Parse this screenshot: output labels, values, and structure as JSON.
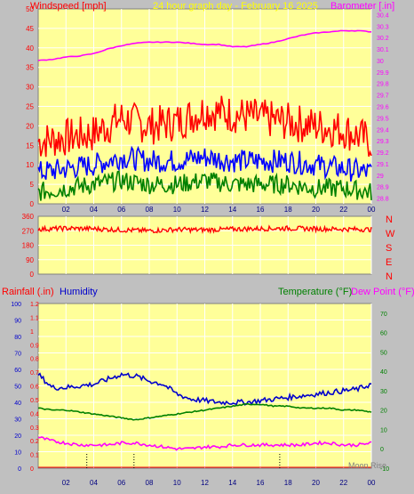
{
  "header": {
    "left_label": "Windspeed [mph]",
    "center_label": "24 hour graph day - February 16 2025",
    "right_label": "Barometer [.in]"
  },
  "dir_letters": [
    "N",
    "W",
    "S",
    "E",
    "N"
  ],
  "bottom_header": {
    "rain_label": "Rainfall (.in)",
    "humidity_label": "Humidity",
    "temp_label": "Temperature (°F)",
    "dew_label": "Dew Point (°F)"
  },
  "moon_label": "Moon Rise",
  "colors": {
    "plot_bg": "#ffff99",
    "frame": "#c0c0c0",
    "gust": "#ff0000",
    "wind_avg": "#0000ff",
    "wind_low": "#008000",
    "barometer": "#ff00ff",
    "direction": "#ff0000",
    "humidity": "#0000cc",
    "temperature": "#008000",
    "dewpoint": "#ff00ff",
    "rain": "#ff0000"
  },
  "chart_data": [
    {
      "type": "line",
      "title": "24 hour graph day - February 16 2025",
      "xlabel": "",
      "x_ticks": [
        "02",
        "04",
        "06",
        "08",
        "10",
        "12",
        "14",
        "16",
        "18",
        "20",
        "22",
        "00"
      ],
      "y_left_label": "Windspeed [mph]",
      "y_left_ticks": [
        0,
        5,
        10,
        15,
        20,
        25,
        30,
        35,
        40,
        45,
        50
      ],
      "ylim_left": [
        0,
        50
      ],
      "y_right_label": "Barometer [.in]",
      "y_right_ticks": [
        "28.8",
        "28.9",
        "29",
        "29.1",
        "29.2",
        "29.3",
        "29.4",
        "29.5",
        "29.6",
        "29.7",
        "29.8",
        "29.9",
        "30",
        "30.1",
        "30.2",
        "30.3",
        "30.4"
      ],
      "ylim_right": [
        28.75,
        30.45
      ],
      "grid": true,
      "series": [
        {
          "name": "Barometer",
          "axis": "right",
          "x": [
            0,
            1,
            2,
            3,
            4,
            5,
            6,
            7,
            8,
            9,
            10,
            11,
            12,
            13,
            14,
            15,
            16,
            17,
            18,
            19,
            20,
            21,
            22,
            23,
            24
          ],
          "values": [
            30.0,
            30.01,
            30.03,
            30.04,
            30.06,
            30.1,
            30.13,
            30.15,
            30.16,
            30.16,
            30.16,
            30.15,
            30.14,
            30.14,
            30.12,
            30.12,
            30.14,
            30.16,
            30.19,
            30.22,
            30.24,
            30.25,
            30.26,
            30.26,
            30.25
          ]
        },
        {
          "name": "Wind gust",
          "axis": "left",
          "x": [
            0,
            2,
            4,
            6,
            8,
            10,
            12,
            14,
            16,
            18,
            20,
            22,
            24
          ],
          "values": [
            16,
            17,
            18,
            22,
            20,
            21,
            24,
            23,
            22,
            21,
            20,
            19,
            16
          ]
        },
        {
          "name": "Wind speed",
          "axis": "left",
          "x": [
            0,
            2,
            4,
            6,
            8,
            10,
            12,
            14,
            16,
            18,
            20,
            22,
            24
          ],
          "values": [
            8,
            9,
            10,
            12,
            11,
            11,
            12,
            11,
            11,
            11,
            10,
            9,
            8
          ]
        },
        {
          "name": "Wind low",
          "axis": "left",
          "x": [
            0,
            2,
            4,
            6,
            8,
            10,
            12,
            14,
            16,
            18,
            20,
            22,
            24
          ],
          "values": [
            3,
            4,
            5,
            6,
            5,
            5,
            6,
            5,
            5,
            5,
            4,
            4,
            3
          ]
        }
      ]
    },
    {
      "type": "line",
      "x_ticks": [],
      "y_left_ticks": [
        0,
        90,
        180,
        270,
        360
      ],
      "ylim_left": [
        0,
        360
      ],
      "y_right_ticks": [
        "N",
        "W",
        "S",
        "E",
        "N"
      ],
      "grid": true,
      "series": [
        {
          "name": "Wind direction",
          "x": [
            0,
            2,
            4,
            6,
            8,
            10,
            12,
            14,
            16,
            18,
            20,
            22,
            24
          ],
          "values": [
            280,
            285,
            282,
            275,
            270,
            278,
            275,
            280,
            283,
            285,
            282,
            280,
            278
          ]
        }
      ]
    },
    {
      "type": "line",
      "x_ticks": [
        "02",
        "04",
        "06",
        "08",
        "10",
        "12",
        "14",
        "16",
        "18",
        "20",
        "22",
        "00"
      ],
      "y_left_ticks": [
        0,
        10,
        20,
        30,
        40,
        50,
        60,
        70,
        80,
        90,
        100
      ],
      "ylim_left": [
        0,
        100
      ],
      "y_rain_ticks": [
        "0",
        "0.1",
        "0.2",
        "0.3",
        "0.4",
        "0.5",
        "0.6",
        "0.7",
        "0.8",
        "0.9",
        "1",
        "1.1",
        "1.2"
      ],
      "ylim_rain": [
        0,
        1.2
      ],
      "y_right_ticks": [
        -10,
        0,
        10,
        20,
        30,
        40,
        50,
        60,
        70
      ],
      "ylim_right": [
        -10,
        75
      ],
      "grid": true,
      "series": [
        {
          "name": "Humidity",
          "axis": "left",
          "x": [
            0,
            1,
            2,
            3,
            4,
            5,
            6,
            7,
            8,
            9,
            10,
            11,
            12,
            13,
            14,
            15,
            16,
            17,
            18,
            19,
            20,
            21,
            22,
            23,
            24
          ],
          "values": [
            57,
            49,
            49,
            50,
            51,
            54,
            57,
            56,
            53,
            51,
            45,
            42,
            41,
            40,
            40,
            40,
            41,
            42,
            43,
            44,
            45,
            46,
            47,
            48,
            51
          ]
        },
        {
          "name": "Temperature",
          "axis": "right",
          "x": [
            0,
            1,
            2,
            3,
            4,
            5,
            6,
            7,
            8,
            9,
            10,
            11,
            12,
            13,
            14,
            15,
            16,
            17,
            18,
            19,
            20,
            21,
            22,
            23,
            24
          ],
          "values": [
            21,
            20,
            20,
            19,
            18,
            17,
            16,
            15,
            16,
            17,
            18,
            19,
            20,
            21,
            22,
            23,
            23,
            22,
            22,
            21,
            21,
            21,
            20,
            20,
            19
          ]
        },
        {
          "name": "Dew Point",
          "axis": "right",
          "x": [
            0,
            1,
            2,
            3,
            4,
            5,
            6,
            7,
            8,
            9,
            10,
            11,
            12,
            13,
            14,
            15,
            16,
            17,
            18,
            19,
            20,
            21,
            22,
            23,
            24
          ],
          "values": [
            6,
            4,
            3,
            2,
            2,
            2,
            3,
            3,
            2,
            1,
            0,
            0,
            1,
            1,
            2,
            2,
            2,
            2,
            2,
            2,
            3,
            3,
            2,
            2,
            3
          ]
        },
        {
          "name": "Rainfall",
          "axis": "rain",
          "x": [
            0,
            24
          ],
          "values": [
            0,
            0
          ]
        }
      ]
    }
  ]
}
